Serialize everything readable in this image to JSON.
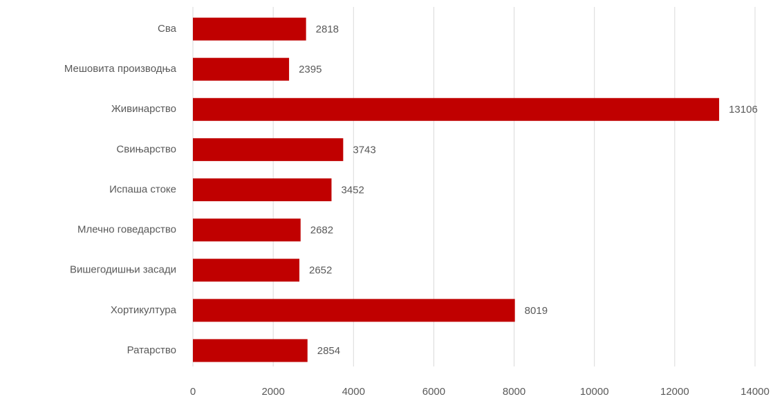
{
  "chart_data": {
    "type": "bar",
    "orientation": "horizontal",
    "categories": [
      "Сва",
      "Мешовита производња",
      "Живинарство",
      "Свињарство",
      "Испаша стоке",
      "Млечно говедарство",
      "Вишегодишњи засади",
      "Хортикултура",
      "Ратарство"
    ],
    "values": [
      2818,
      2395,
      13106,
      3743,
      3452,
      2682,
      2652,
      8019,
      2854
    ],
    "color": "#c00000",
    "xlim": [
      0,
      14000
    ],
    "xticks": [
      0,
      2000,
      4000,
      6000,
      8000,
      10000,
      12000,
      14000
    ],
    "grid": true
  }
}
